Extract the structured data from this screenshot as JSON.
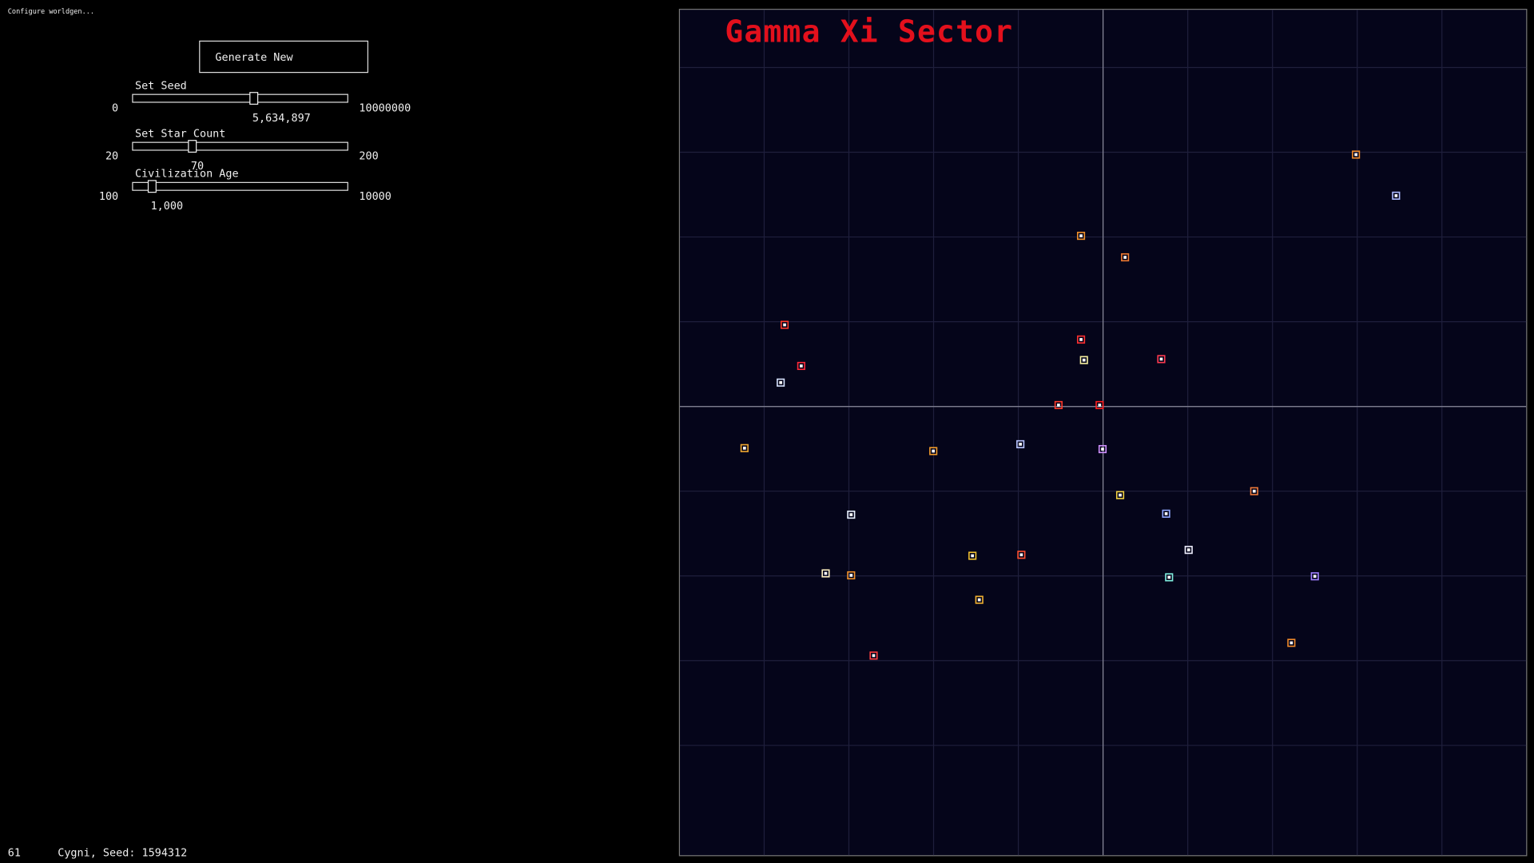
{
  "header": {
    "title": "Configure worldgen..."
  },
  "button": {
    "label": "Generate New"
  },
  "sliders": [
    {
      "label": "Set Seed",
      "min": 0,
      "max": 10000000,
      "value": {
        "value": 5634897,
        "label": "5,634,897"
      }
    },
    {
      "label": "Set Star Count",
      "min": 20,
      "max": 200,
      "value": 70
    },
    {
      "label": "Civilization Age",
      "min": 100,
      "max": 10000,
      "value": {
        "value": 1000,
        "label": "1,000"
      }
    }
  ],
  "map": {
    "title": "Gamma Xi Sector"
  },
  "footer": {
    "fps": 61,
    "info": "Cygni, Seed: 1594312"
  }
}
